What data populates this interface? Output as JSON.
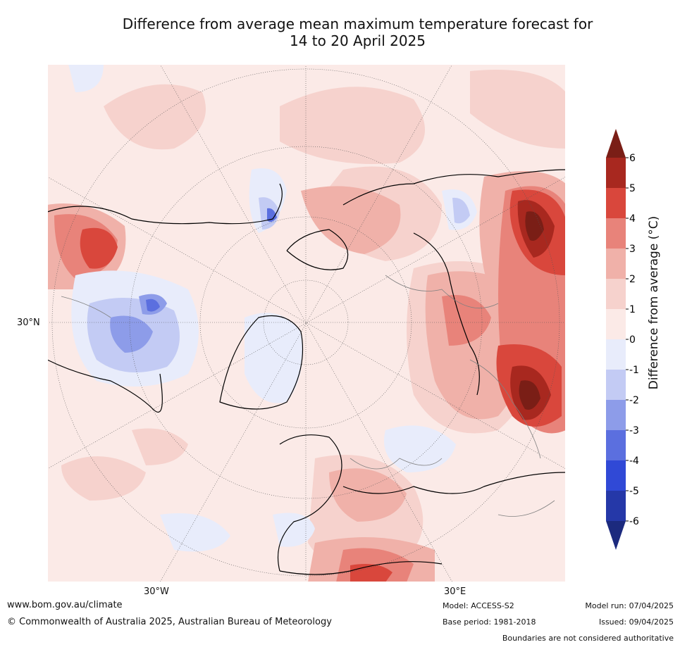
{
  "title": {
    "line1": "Difference from average mean maximum temperature forecast for",
    "line2": "14 to 20 April 2025"
  },
  "map": {
    "lat_label": "30°N",
    "lon_labels": {
      "west": "30°W",
      "east": "30°E"
    }
  },
  "colorbar": {
    "label": "Difference from average (°C)",
    "ticks": [
      "6",
      "5",
      "4",
      "3",
      "2",
      "1",
      "0",
      "-1",
      "-2",
      "-3",
      "-4",
      "-5",
      "-6"
    ],
    "colors": {
      "c6plus": "#7a1e16",
      "c5_6": "#a8281f",
      "c4_5": "#d9473c",
      "c3_4": "#e8837a",
      "c2_3": "#f0b1a9",
      "c1_2": "#f6d2cd",
      "c0_1": "#fbeae7",
      "cm1_0": "#e8ecfb",
      "cm2_m1": "#c3cbf4",
      "cm3_m2": "#8d9ce9",
      "cm4_m3": "#5b6fdf",
      "cm5_m4": "#3049d6",
      "cm6_m5": "#2538a8",
      "cm6minus": "#1c2a7e"
    }
  },
  "footer": {
    "website": "www.bom.gov.au/climate",
    "copyright": "© Commonwealth of Australia 2025, Australian Bureau of Meteorology",
    "model": "Model: ACCESS-S2",
    "base_period": "Base period: 1981-2018",
    "model_run": "Model run: 07/04/2025",
    "issued": "Issued: 09/04/2025",
    "boundaries_note": "Boundaries are not considered authoritative"
  }
}
